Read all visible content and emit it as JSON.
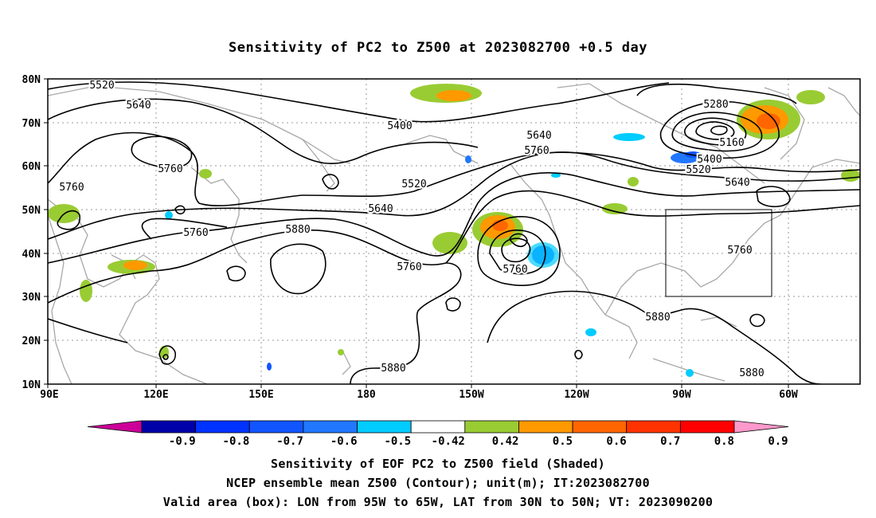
{
  "title": "Sensitivity of PC2 to Z500 at 2023082700 +0.5 day",
  "lat_labels": [
    "80N",
    "70N",
    "60N",
    "50N",
    "40N",
    "30N",
    "20N",
    "10N"
  ],
  "lon_labels": [
    "90E",
    "120E",
    "150E",
    "180",
    "150W",
    "120W",
    "90W",
    "60W"
  ],
  "contour_labels": [
    "5520",
    "5640",
    "5400",
    "5760",
    "5520",
    "5640",
    "5760",
    "5640",
    "5880",
    "5760",
    "5280",
    "5160",
    "5400",
    "5520",
    "5640",
    "5760",
    "5760",
    "5880",
    "5880",
    "5880"
  ],
  "colorbar": {
    "labels": [
      "-0.9",
      "-0.8",
      "-0.7",
      "-0.6",
      "-0.5",
      "-0.42",
      "0.42",
      "0.5",
      "0.6",
      "0.7",
      "0.8",
      "0.9"
    ],
    "colors": [
      "#cc0099",
      "#0000a8",
      "#0033ff",
      "#1155ff",
      "#2277ff",
      "#00ccff",
      "#ffffff",
      "#99cc33",
      "#ff9900",
      "#ff6600",
      "#ff3300",
      "#ff0000",
      "#ff99cc"
    ]
  },
  "footer": {
    "line1": "Sensitivity of EOF PC2 to Z500 field (Shaded)",
    "line2": "NCEP ensemble mean Z500 (Contour); unit(m); IT:2023082700",
    "line3": "Valid area (box): LON from 95W to 65W, LAT from 30N to 50N; VT: 2023090200"
  },
  "valid_box": {
    "lon_min": "95W",
    "lon_max": "65W",
    "lat_min": "30N",
    "lat_max": "50N"
  }
}
